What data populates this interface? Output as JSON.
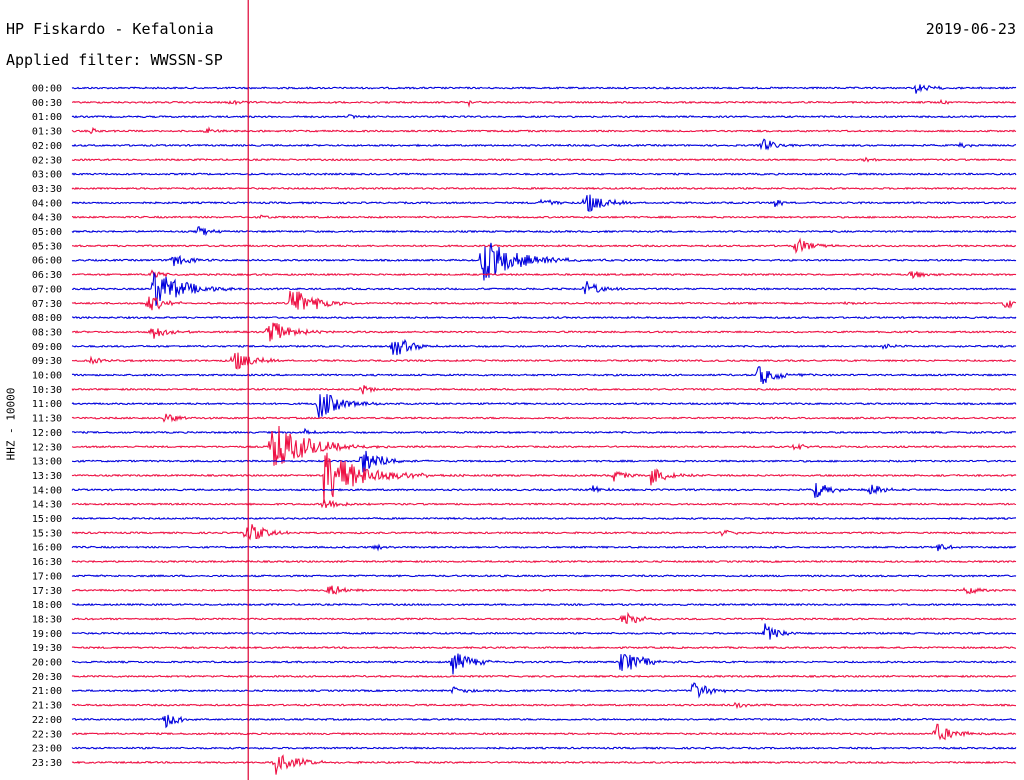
{
  "header": {
    "station": "HP Fiskardo - Kefalonia",
    "filter": "Applied filter: WWSSN-SP",
    "date": "2019-06-23"
  },
  "channel_label": "HHZ - 10000",
  "colors": {
    "odd_rows": "#0000dd",
    "even_rows": "#ee1144",
    "marker": "#dd0033"
  },
  "chart_data": {
    "type": "line",
    "title": "HP Fiskardo - Kefalonia",
    "ylabel": "HHZ - 10000",
    "xlabel": "",
    "grid": false,
    "row_ticks": [
      "00:00",
      "00:30",
      "01:00",
      "01:30",
      "02:00",
      "02:30",
      "03:00",
      "03:30",
      "04:00",
      "04:30",
      "05:00",
      "05:30",
      "06:00",
      "06:30",
      "07:00",
      "07:30",
      "08:00",
      "08:30",
      "09:00",
      "09:30",
      "10:00",
      "10:30",
      "11:00",
      "11:30",
      "12:00",
      "12:30",
      "13:00",
      "13:30",
      "14:00",
      "14:30",
      "15:00",
      "15:30",
      "16:00",
      "16:30",
      "17:00",
      "17:30",
      "18:00",
      "18:30",
      "19:00",
      "19:30",
      "20:00",
      "20:30",
      "21:00",
      "21:30",
      "22:00",
      "22:30",
      "23:00",
      "23:30"
    ],
    "xlim_minutes": [
      0,
      30
    ],
    "marker_minute": 5.6,
    "events": [
      {
        "row": 0,
        "minute": 26.8,
        "amplitude": 6
      },
      {
        "row": 1,
        "minute": 5.0,
        "amplitude": 3
      },
      {
        "row": 1,
        "minute": 12.6,
        "amplitude": 3
      },
      {
        "row": 1,
        "minute": 27.6,
        "amplitude": 2
      },
      {
        "row": 2,
        "minute": 8.8,
        "amplitude": 3
      },
      {
        "row": 3,
        "minute": 0.6,
        "amplitude": 3
      },
      {
        "row": 3,
        "minute": 4.2,
        "amplitude": 4
      },
      {
        "row": 4,
        "minute": 21.9,
        "amplitude": 8
      },
      {
        "row": 4,
        "minute": 28.2,
        "amplitude": 3
      },
      {
        "row": 5,
        "minute": 25.2,
        "amplitude": 3
      },
      {
        "row": 8,
        "minute": 14.9,
        "amplitude": 6
      },
      {
        "row": 8,
        "minute": 16.3,
        "amplitude": 12
      },
      {
        "row": 8,
        "minute": 22.3,
        "amplitude": 4
      },
      {
        "row": 9,
        "minute": 6.0,
        "amplitude": 2
      },
      {
        "row": 10,
        "minute": 4.0,
        "amplitude": 6
      },
      {
        "row": 11,
        "minute": 23.0,
        "amplitude": 9
      },
      {
        "row": 12,
        "minute": 3.1,
        "amplitude": 9
      },
      {
        "row": 12,
        "minute": 13.0,
        "amplitude": 26
      },
      {
        "row": 13,
        "minute": 2.5,
        "amplitude": 5
      },
      {
        "row": 13,
        "minute": 26.6,
        "amplitude": 6
      },
      {
        "row": 14,
        "minute": 2.6,
        "amplitude": 22
      },
      {
        "row": 14,
        "minute": 16.3,
        "amplitude": 9
      },
      {
        "row": 15,
        "minute": 2.4,
        "amplitude": 10
      },
      {
        "row": 15,
        "minute": 6.9,
        "amplitude": 18
      },
      {
        "row": 15,
        "minute": 24.6,
        "amplitude": 3
      },
      {
        "row": 15,
        "minute": 29.6,
        "amplitude": 6
      },
      {
        "row": 17,
        "minute": 2.5,
        "amplitude": 9
      },
      {
        "row": 17,
        "minute": 6.2,
        "amplitude": 14
      },
      {
        "row": 18,
        "minute": 10.2,
        "amplitude": 12
      },
      {
        "row": 18,
        "minute": 25.7,
        "amplitude": 4
      },
      {
        "row": 19,
        "minute": 0.6,
        "amplitude": 4
      },
      {
        "row": 19,
        "minute": 5.1,
        "amplitude": 12
      },
      {
        "row": 20,
        "minute": 21.8,
        "amplitude": 12
      },
      {
        "row": 21,
        "minute": 9.2,
        "amplitude": 5
      },
      {
        "row": 22,
        "minute": 7.8,
        "amplitude": 16
      },
      {
        "row": 23,
        "minute": 2.9,
        "amplitude": 7
      },
      {
        "row": 24,
        "minute": 7.4,
        "amplitude": 4
      },
      {
        "row": 25,
        "minute": 6.3,
        "amplitude": 28
      },
      {
        "row": 25,
        "minute": 22.9,
        "amplitude": 5
      },
      {
        "row": 26,
        "minute": 9.2,
        "amplitude": 14
      },
      {
        "row": 27,
        "minute": 8.0,
        "amplitude": 30
      },
      {
        "row": 27,
        "minute": 17.2,
        "amplitude": 6
      },
      {
        "row": 27,
        "minute": 18.4,
        "amplitude": 10
      },
      {
        "row": 28,
        "minute": 16.5,
        "amplitude": 5
      },
      {
        "row": 28,
        "minute": 23.6,
        "amplitude": 9
      },
      {
        "row": 28,
        "minute": 25.3,
        "amplitude": 8
      },
      {
        "row": 29,
        "minute": 8.0,
        "amplitude": 8
      },
      {
        "row": 31,
        "minute": 5.5,
        "amplitude": 12
      },
      {
        "row": 31,
        "minute": 20.6,
        "amplitude": 4
      },
      {
        "row": 32,
        "minute": 9.6,
        "amplitude": 4
      },
      {
        "row": 32,
        "minute": 27.5,
        "amplitude": 5
      },
      {
        "row": 35,
        "minute": 8.1,
        "amplitude": 8
      },
      {
        "row": 35,
        "minute": 28.4,
        "amplitude": 5
      },
      {
        "row": 37,
        "minute": 17.5,
        "amplitude": 9
      },
      {
        "row": 38,
        "minute": 22.0,
        "amplitude": 10
      },
      {
        "row": 40,
        "minute": 12.1,
        "amplitude": 12
      },
      {
        "row": 40,
        "minute": 17.4,
        "amplitude": 14
      },
      {
        "row": 42,
        "minute": 12.1,
        "amplitude": 5
      },
      {
        "row": 42,
        "minute": 19.7,
        "amplitude": 10
      },
      {
        "row": 43,
        "minute": 21.0,
        "amplitude": 4
      },
      {
        "row": 44,
        "minute": 2.9,
        "amplitude": 9
      },
      {
        "row": 45,
        "minute": 27.4,
        "amplitude": 12
      },
      {
        "row": 47,
        "minute": 6.4,
        "amplitude": 14
      }
    ]
  }
}
